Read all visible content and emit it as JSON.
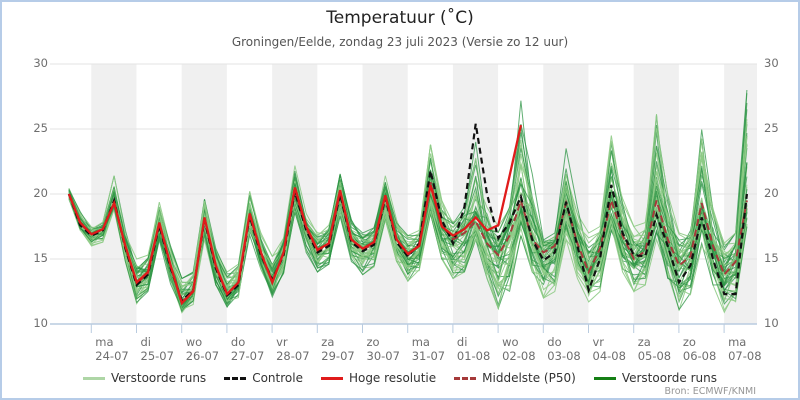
{
  "title": "Temperatuur (˚C)",
  "subtitle": "Groningen/Eelde, zondag 23 juli 2023 (Versie zo 12 uur)",
  "source": "Bron: ECMWF/KNMI",
  "legend": [
    {
      "label": "Verstoorde runs",
      "color": "#aed6a6",
      "dash": false
    },
    {
      "label": "Controle",
      "color": "#111111",
      "dash": true
    },
    {
      "label": "Hoge resolutie",
      "color": "#e01b1b",
      "dash": false
    },
    {
      "label": "Middelste (P50)",
      "color": "#a63a3a",
      "dash": true
    },
    {
      "label": "Verstoorde runs",
      "color": "#157f15",
      "dash": false
    }
  ],
  "colors": {
    "band": "#f0f0f0",
    "grid": "#e3e3e3",
    "axis_blue": "#b9cbdf",
    "member_light": "#8ecb86",
    "member_dark": "#2c9444",
    "controle": "#111111",
    "hres": "#e01b1b",
    "p50": "#a63a3a",
    "label_gray": "#6e6e6e"
  },
  "chart_data": {
    "type": "line",
    "title": "Temperatuur (˚C)",
    "subtitle": "Groningen/Eelde, zondag 23 juli 2023 (Versie zo 12 uur)",
    "ylabel": "Temperatuur (˚C)",
    "ylim": [
      10,
      30
    ],
    "yticks": [
      30,
      25,
      20,
      15,
      10
    ],
    "grid": true,
    "legend_position": "bottom",
    "time_start": "zo 23-07 12:00",
    "time_step_hours": 6,
    "days": [
      {
        "name": "ma",
        "date": "24-07"
      },
      {
        "name": "di",
        "date": "25-07"
      },
      {
        "name": "wo",
        "date": "26-07"
      },
      {
        "name": "do",
        "date": "27-07"
      },
      {
        "name": "vr",
        "date": "28-07"
      },
      {
        "name": "za",
        "date": "29-07"
      },
      {
        "name": "zo",
        "date": "30-07"
      },
      {
        "name": "ma",
        "date": "31-07"
      },
      {
        "name": "di",
        "date": "01-08"
      },
      {
        "name": "wo",
        "date": "02-08"
      },
      {
        "name": "do",
        "date": "03-08"
      },
      {
        "name": "vr",
        "date": "04-08"
      },
      {
        "name": "za",
        "date": "05-08"
      },
      {
        "name": "zo",
        "date": "06-08"
      },
      {
        "name": "ma",
        "date": "07-08"
      }
    ],
    "shaded_days_gray": [
      "24-07",
      "26-07",
      "28-07",
      "30-07",
      "01-08",
      "03-08",
      "05-08",
      "07-08"
    ],
    "series": [
      {
        "name": "Controle",
        "style": "black-dashed",
        "values": [
          20.0,
          17.6,
          16.8,
          17.2,
          19.5,
          15.8,
          13.0,
          13.8,
          17.6,
          14.3,
          11.8,
          12.6,
          18.0,
          14.3,
          12.2,
          13.0,
          18.3,
          15.3,
          13.4,
          15.3,
          20.2,
          17.2,
          15.5,
          16.0,
          20.0,
          16.3,
          15.6,
          16.1,
          19.7,
          16.3,
          15.2,
          16.2,
          21.8,
          18.0,
          16.2,
          19.0,
          25.4,
          20.0,
          16.6,
          17.8,
          19.8,
          16.5,
          14.9,
          15.5,
          19.4,
          16.0,
          12.6,
          15.0,
          20.7,
          17.0,
          15.3,
          15.2,
          18.4,
          16.0,
          13.2,
          14.5,
          18.2,
          15.0,
          12.3,
          12.3,
          20.0
        ]
      },
      {
        "name": "Hoge resolutie",
        "style": "red-solid",
        "values": [
          20.0,
          17.8,
          16.9,
          17.3,
          19.3,
          16.0,
          13.2,
          14.0,
          17.8,
          14.5,
          11.6,
          12.5,
          18.2,
          14.5,
          12.3,
          13.2,
          18.5,
          15.5,
          13.2,
          15.5,
          20.5,
          17.5,
          15.7,
          16.2,
          20.3,
          16.5,
          15.8,
          16.3,
          19.9,
          16.5,
          15.4,
          16.0,
          20.7,
          17.5,
          16.8,
          17.3,
          18.2,
          17.2,
          17.6,
          21.4,
          25.3
        ]
      },
      {
        "name": "Middelste (P50)",
        "style": "darkred-dashed",
        "values": [
          20.0,
          17.7,
          16.9,
          17.3,
          19.4,
          15.9,
          13.1,
          13.9,
          17.7,
          14.4,
          11.7,
          12.6,
          18.1,
          14.4,
          12.3,
          13.1,
          18.4,
          15.4,
          13.3,
          15.4,
          20.3,
          17.3,
          15.6,
          16.1,
          20.1,
          16.4,
          15.7,
          16.2,
          19.8,
          16.4,
          15.3,
          16.1,
          20.9,
          17.6,
          16.5,
          17.0,
          17.9,
          16.2,
          15.3,
          16.8,
          19.5,
          16.5,
          15.5,
          16.0,
          19.3,
          16.2,
          14.0,
          15.8,
          19.5,
          16.8,
          15.0,
          15.6,
          19.5,
          16.5,
          14.5,
          15.2,
          19.3,
          16.0,
          13.8,
          14.8,
          19.5
        ]
      }
    ],
    "ensemble": {
      "name": "Verstoorde runs",
      "n_members": 50,
      "envelope_min": [
        19.6,
        17.2,
        16.0,
        16.3,
        18.8,
        14.8,
        11.5,
        12.5,
        16.3,
        13.0,
        10.8,
        11.5,
        16.5,
        13.0,
        11.3,
        12.0,
        16.8,
        14.0,
        12.0,
        13.8,
        18.5,
        15.5,
        14.0,
        14.6,
        18.3,
        14.8,
        13.8,
        14.4,
        18.0,
        14.8,
        13.3,
        14.0,
        18.5,
        15.0,
        13.5,
        14.0,
        16.5,
        13.5,
        11.2,
        12.5,
        16.8,
        14.0,
        12.0,
        12.5,
        16.5,
        13.5,
        11.7,
        12.5,
        17.0,
        14.0,
        12.5,
        13.0,
        16.5,
        13.5,
        11.1,
        12.0,
        16.0,
        13.0,
        10.9,
        11.5,
        17.5
      ],
      "envelope_max": [
        20.6,
        18.8,
        17.6,
        17.9,
        21.4,
        17.2,
        15.0,
        15.3,
        19.5,
        16.0,
        13.5,
        14.0,
        19.6,
        15.8,
        14.0,
        14.6,
        20.2,
        17.0,
        15.2,
        16.6,
        22.2,
        18.5,
        17.2,
        17.6,
        21.6,
        18.0,
        17.0,
        17.4,
        21.4,
        18.0,
        16.8,
        17.2,
        23.8,
        19.5,
        18.0,
        19.0,
        24.0,
        19.5,
        17.5,
        19.0,
        28.3,
        22.0,
        16.5,
        17.0,
        23.5,
        19.0,
        17.0,
        17.5,
        24.5,
        20.0,
        17.5,
        17.8,
        26.8,
        20.0,
        17.0,
        17.5,
        26.0,
        20.0,
        16.5,
        17.0,
        28.0
      ]
    }
  }
}
